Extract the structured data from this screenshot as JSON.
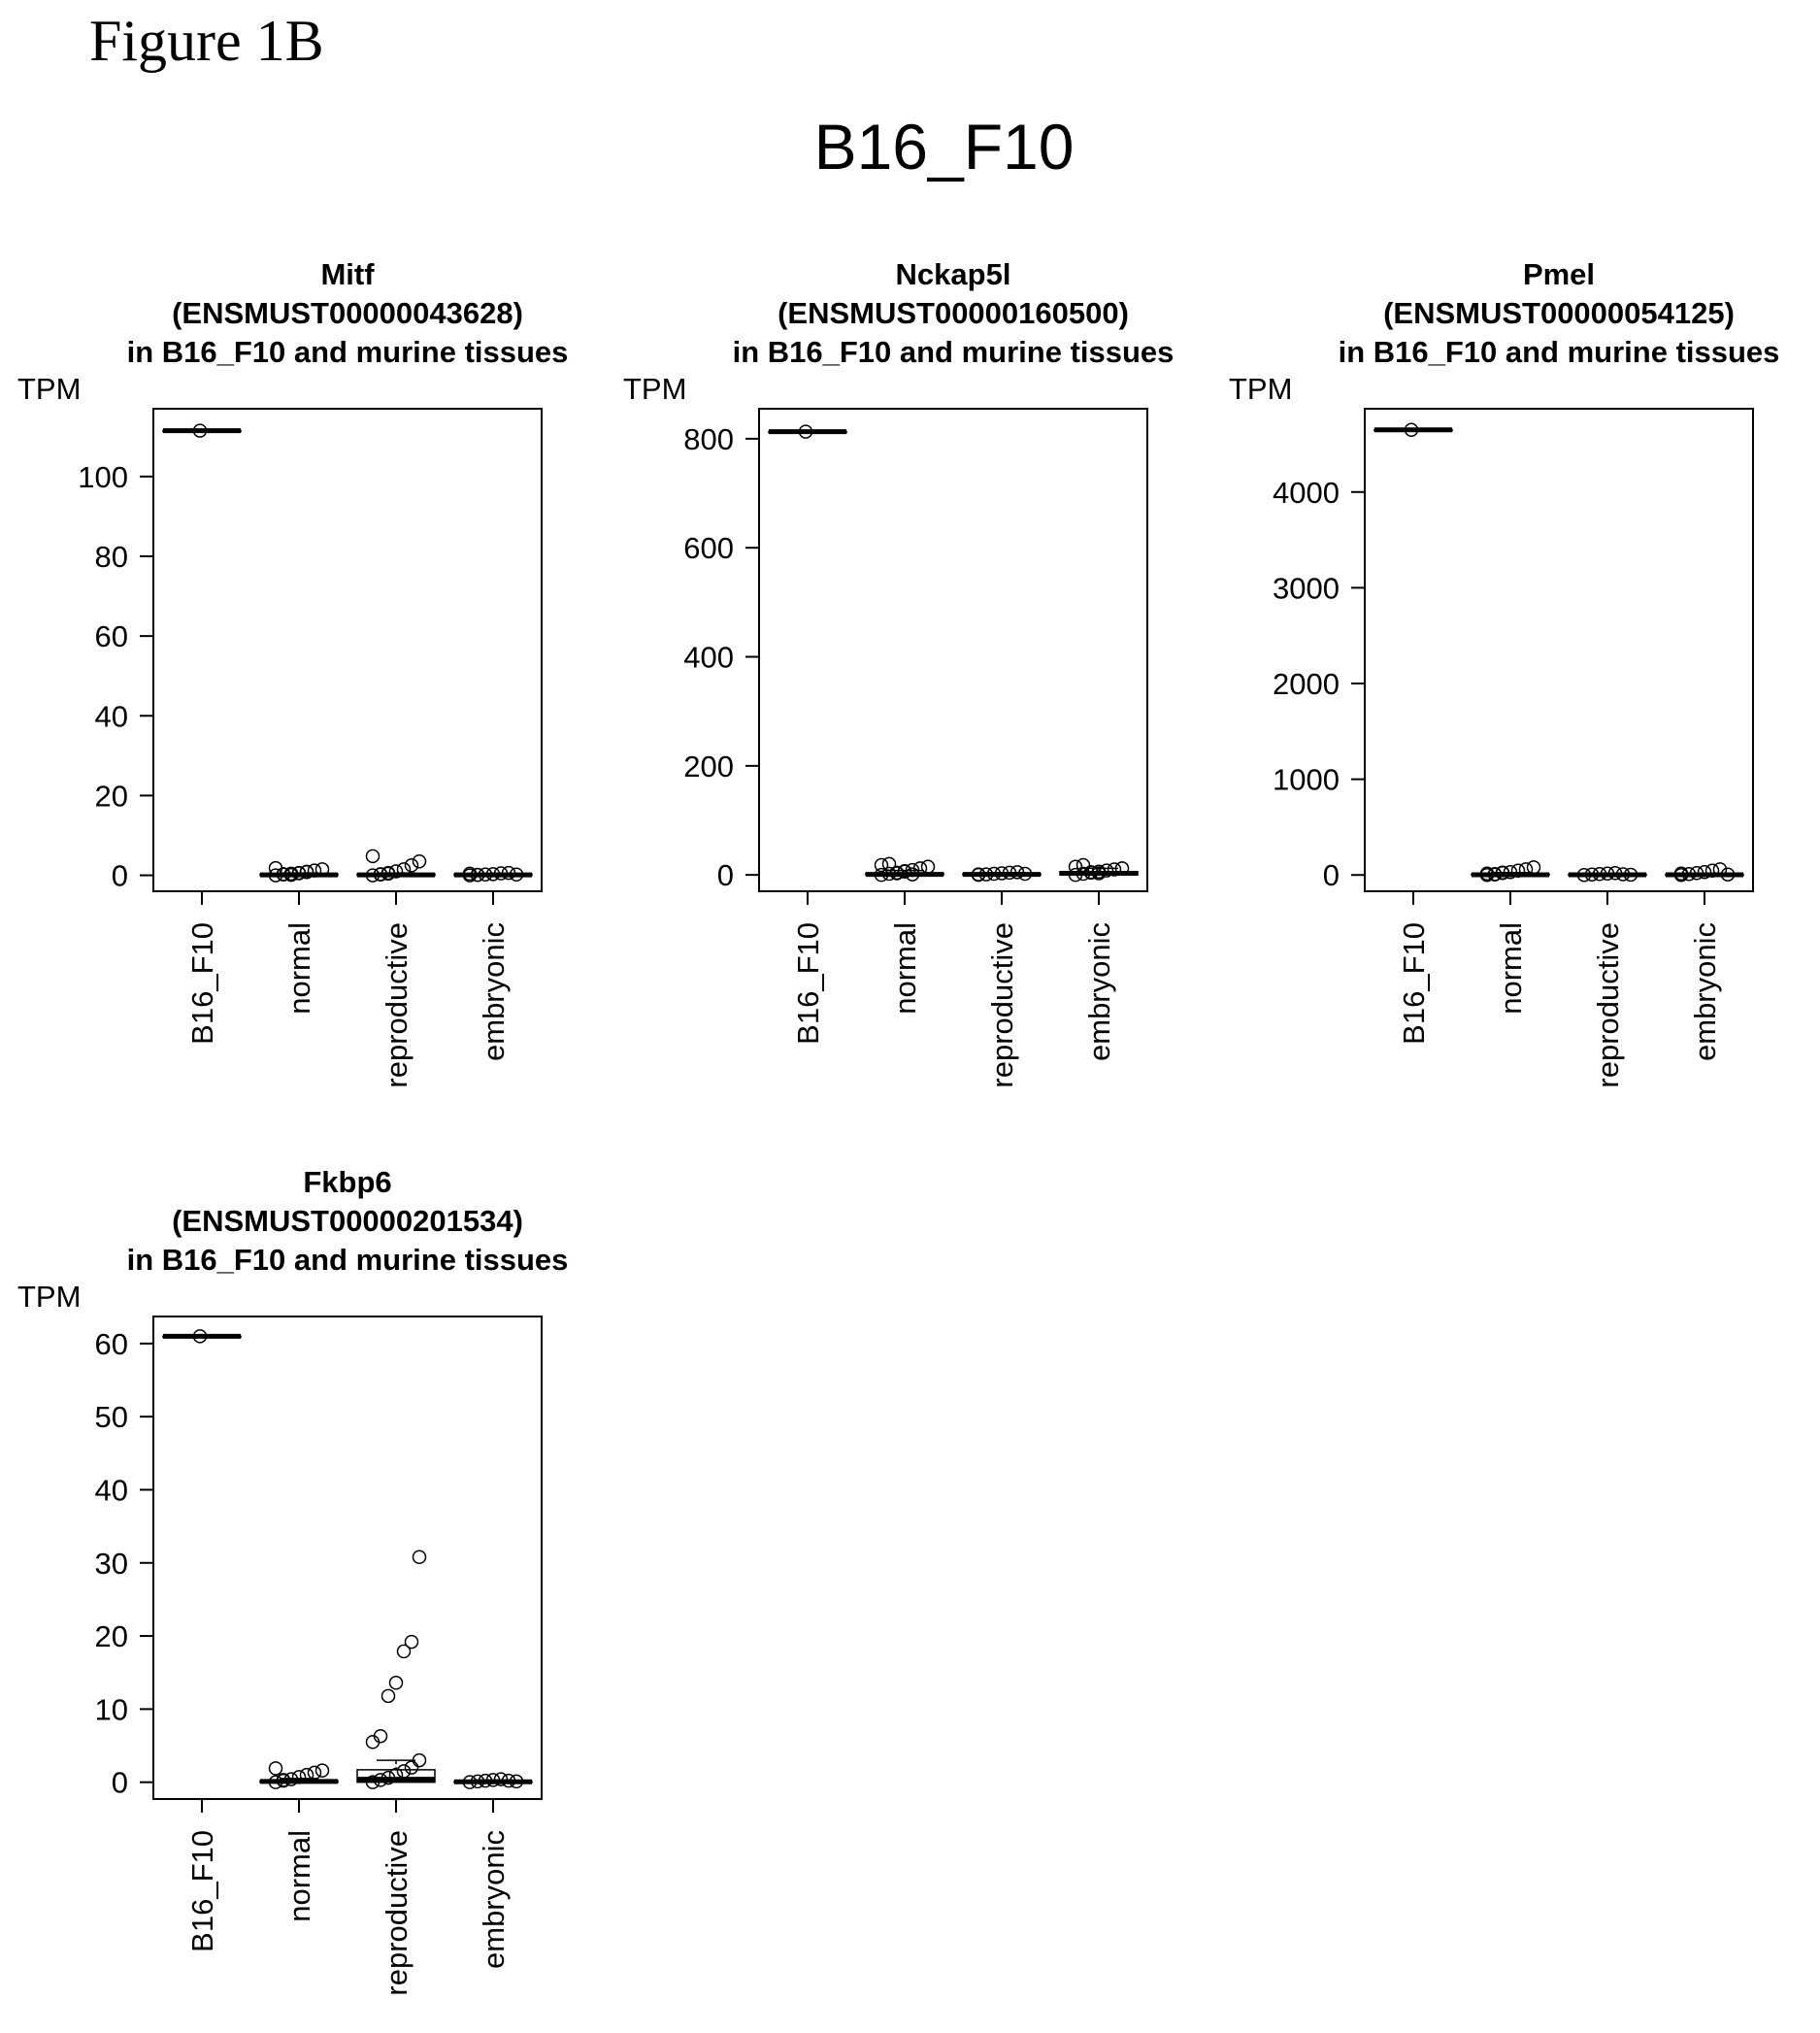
{
  "figure_label": "Figure 1B",
  "main_title": "B16_F10",
  "chart_data": [
    {
      "type": "box",
      "title": [
        "Mitf",
        "(ENSMUST00000043628)",
        "in B16_F10 and murine tissues"
      ],
      "ylabel": "TPM",
      "categories": [
        "B16_F10",
        "normal",
        "reproductive",
        "embryonic"
      ],
      "ylim": [
        -4,
        117
      ],
      "yticks": [
        0,
        20,
        40,
        60,
        80,
        100
      ],
      "boxes": [
        {
          "median": 111.5,
          "q1": 111.5,
          "q3": 111.5,
          "whisker_low": 111.5,
          "whisker_high": 111.5
        },
        {
          "median": 0.1,
          "q1": 0,
          "q3": 0.3,
          "whisker_low": 0,
          "whisker_high": 0.6
        },
        {
          "median": 0.1,
          "q1": 0,
          "q3": 0.3,
          "whisker_low": 0,
          "whisker_high": 0.6
        },
        {
          "median": 0.1,
          "q1": 0,
          "q3": 0.3,
          "whisker_low": 0,
          "whisker_high": 0.5
        }
      ],
      "points": [
        [
          111.5
        ],
        [
          0,
          0.2,
          0.4,
          0.6,
          0.9,
          1.2,
          1.5,
          1.8,
          0.3,
          0.1,
          0.5,
          0.8
        ],
        [
          0,
          0.3,
          0.6,
          1.0,
          1.5,
          2.5,
          3.5,
          4.8,
          0.2,
          0.4
        ],
        [
          0,
          0.1,
          0.2,
          0.3,
          0.5,
          0.6,
          0.2,
          0.4,
          0.1
        ]
      ]
    },
    {
      "type": "box",
      "title": [
        "Nckap5l",
        "(ENSMUST00000160500)",
        "in B16_F10 and murine tissues"
      ],
      "ylabel": "TPM",
      "categories": [
        "B16_F10",
        "normal",
        "reproductive",
        "embryonic"
      ],
      "ylim": [
        -30,
        855
      ],
      "yticks": [
        0,
        200,
        400,
        600,
        800
      ],
      "boxes": [
        {
          "median": 813,
          "q1": 813,
          "q3": 813,
          "whisker_low": 813,
          "whisker_high": 813
        },
        {
          "median": 1,
          "q1": 0,
          "q3": 3,
          "whisker_low": 0,
          "whisker_high": 8
        },
        {
          "median": 1,
          "q1": 0,
          "q3": 2,
          "whisker_low": 0,
          "whisker_high": 4
        },
        {
          "median": 3,
          "q1": 0,
          "q3": 6,
          "whisker_low": 0,
          "whisker_high": 12
        }
      ],
      "points": [
        [
          813
        ],
        [
          0,
          2,
          4,
          6,
          9,
          12,
          15,
          18,
          20,
          3,
          7,
          1
        ],
        [
          0,
          1,
          2,
          3,
          4,
          5,
          2,
          1
        ],
        [
          0,
          2,
          4,
          6,
          8,
          10,
          12,
          15,
          18,
          5,
          3
        ]
      ]
    },
    {
      "type": "box",
      "title": [
        "Pmel",
        "(ENSMUST00000054125)",
        "in B16_F10 and murine tissues"
      ],
      "ylabel": "TPM",
      "categories": [
        "B16_F10",
        "normal",
        "reproductive",
        "embryonic"
      ],
      "ylim": [
        -170,
        4870
      ],
      "yticks": [
        0,
        1000,
        2000,
        3000,
        4000
      ],
      "boxes": [
        {
          "median": 4650,
          "q1": 4650,
          "q3": 4650,
          "whisker_low": 4650,
          "whisker_high": 4650
        },
        {
          "median": 3,
          "q1": 0,
          "q3": 10,
          "whisker_low": 0,
          "whisker_high": 25
        },
        {
          "median": 2,
          "q1": 0,
          "q3": 6,
          "whisker_low": 0,
          "whisker_high": 15
        },
        {
          "median": 3,
          "q1": 0,
          "q3": 8,
          "whisker_low": 0,
          "whisker_high": 20
        }
      ],
      "points": [
        [
          4650
        ],
        [
          0,
          10,
          20,
          30,
          45,
          60,
          80,
          15,
          5,
          25
        ],
        [
          0,
          5,
          10,
          15,
          20,
          8,
          3
        ],
        [
          0,
          10,
          20,
          30,
          45,
          60,
          5,
          15
        ]
      ]
    },
    {
      "type": "box",
      "title": [
        "Fkbp6",
        "(ENSMUST00000201534)",
        "in B16_F10 and murine tissues"
      ],
      "ylabel": "TPM",
      "categories": [
        "B16_F10",
        "normal",
        "reproductive",
        "embryonic"
      ],
      "ylim": [
        -2.3,
        63.7
      ],
      "yticks": [
        0,
        10,
        20,
        30,
        40,
        50,
        60
      ],
      "boxes": [
        {
          "median": 61,
          "q1": 61,
          "q3": 61,
          "whisker_low": 61,
          "whisker_high": 61
        },
        {
          "median": 0.1,
          "q1": 0,
          "q3": 0.2,
          "whisker_low": 0,
          "whisker_high": 0.5
        },
        {
          "median": 0.4,
          "q1": 0,
          "q3": 1.7,
          "whisker_low": 0,
          "whisker_high": 3.0
        },
        {
          "median": 0.05,
          "q1": 0,
          "q3": 0.1,
          "whisker_low": 0,
          "whisker_high": 0.3
        }
      ],
      "points": [
        [
          61
        ],
        [
          0,
          0.2,
          0.4,
          0.7,
          1.0,
          1.3,
          1.6,
          1.9,
          0.3
        ],
        [
          0,
          0.3,
          0.6,
          1.0,
          1.5,
          2.0,
          3.0,
          5.5,
          6.3,
          11.8,
          13.6,
          17.9,
          19.2,
          30.8
        ],
        [
          0,
          0.1,
          0.2,
          0.3,
          0.4,
          0.2,
          0.1
        ]
      ]
    }
  ]
}
